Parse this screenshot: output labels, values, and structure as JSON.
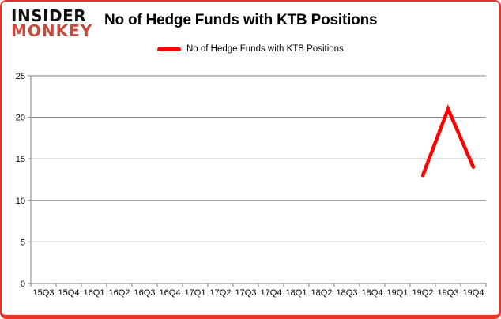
{
  "header": {
    "logo_line1": "INSIDER",
    "logo_line2": "MONKEY",
    "title": "No of Hedge Funds with KTB Positions"
  },
  "legend": {
    "label": "No of Hedge Funds with KTB Positions"
  },
  "colors": {
    "line": "#ff0000",
    "grid": "#808080",
    "axis": "#808080",
    "tick_label": "#000000",
    "logo_black": "#111111",
    "logo_accent": "#c74b3a",
    "border": "#ee3124"
  },
  "chart_data": {
    "type": "line",
    "title": "No of Hedge Funds with KTB Positions",
    "categories": [
      "15Q3",
      "15Q4",
      "16Q1",
      "16Q2",
      "16Q3",
      "16Q4",
      "17Q1",
      "17Q2",
      "17Q3",
      "17Q4",
      "18Q1",
      "18Q2",
      "18Q3",
      "18Q4",
      "19Q1",
      "19Q2",
      "19Q3",
      "19Q4"
    ],
    "series": [
      {
        "name": "No of Hedge Funds with KTB Positions",
        "values": [
          null,
          null,
          null,
          null,
          null,
          null,
          null,
          null,
          null,
          null,
          null,
          null,
          null,
          null,
          null,
          13,
          21,
          14
        ]
      }
    ],
    "xlabel": "",
    "ylabel": "",
    "ylim": [
      0,
      25
    ],
    "ytick_step": 5,
    "grid": true,
    "legend_position": "top"
  }
}
